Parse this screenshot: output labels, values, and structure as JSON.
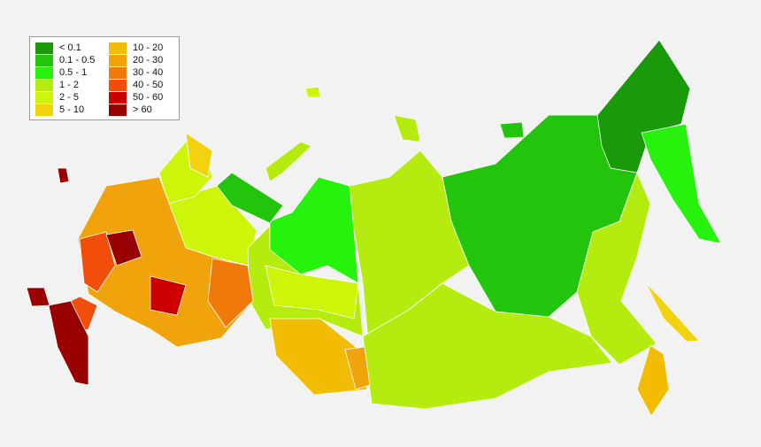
{
  "legend": {
    "items": [
      {
        "label": "< 0.1",
        "color": "#1a9a0a"
      },
      {
        "label": "0.1 - 0.5",
        "color": "#22c40c"
      },
      {
        "label": "0.5 - 1",
        "color": "#27f20e"
      },
      {
        "label": "1 - 2",
        "color": "#b3ec0e"
      },
      {
        "label": "2 - 5",
        "color": "#ccf50a"
      },
      {
        "label": "5 - 10",
        "color": "#f2d20c"
      },
      {
        "label": "10 - 20",
        "color": "#f2bc05"
      },
      {
        "label": "20 - 30",
        "color": "#f0a30a"
      },
      {
        "label": "30 - 40",
        "color": "#ef7a0a"
      },
      {
        "label": "40 - 50",
        "color": "#f04e0a"
      },
      {
        "label": "50 - 60",
        "color": "#cc0000"
      },
      {
        "label": "> 60",
        "color": "#990000"
      }
    ]
  }
}
